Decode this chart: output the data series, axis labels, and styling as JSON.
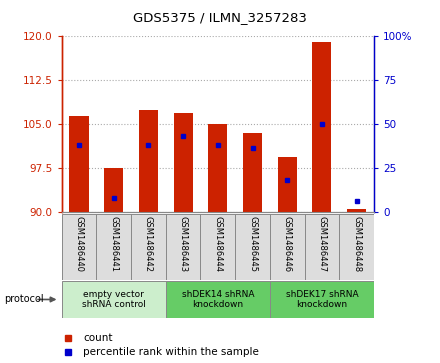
{
  "title": "GDS5375 / ILMN_3257283",
  "samples": [
    "GSM1486440",
    "GSM1486441",
    "GSM1486442",
    "GSM1486443",
    "GSM1486444",
    "GSM1486445",
    "GSM1486446",
    "GSM1486447",
    "GSM1486448"
  ],
  "bar_tops": [
    106.5,
    97.5,
    107.5,
    107.0,
    105.0,
    103.5,
    99.5,
    119.0,
    90.5
  ],
  "bar_bottom": 90,
  "blue_y_left": [
    101.5,
    92.5,
    101.5,
    103.0,
    101.5,
    101.0,
    95.5,
    105.0,
    92.0
  ],
  "ylim_left": [
    90,
    120
  ],
  "ylim_right": [
    0,
    100
  ],
  "yticks_left": [
    90,
    97.5,
    105,
    112.5,
    120
  ],
  "yticks_right": [
    0,
    25,
    50,
    75,
    100
  ],
  "left_color": "#cc2200",
  "right_color": "#0000cc",
  "grid_color": "#aaaaaa",
  "bar_color": "#cc2200",
  "dot_color": "#0000cc",
  "group_colors": [
    "#cceecc",
    "#66cc66",
    "#66cc66"
  ],
  "groups": [
    {
      "label": "empty vector\nshRNA control",
      "start": 0,
      "end": 3
    },
    {
      "label": "shDEK14 shRNA\nknockdown",
      "start": 3,
      "end": 6
    },
    {
      "label": "shDEK17 shRNA\nknockdown",
      "start": 6,
      "end": 9
    }
  ],
  "legend_count_label": "count",
  "legend_pct_label": "percentile rank within the sample",
  "protocol_label": "protocol"
}
